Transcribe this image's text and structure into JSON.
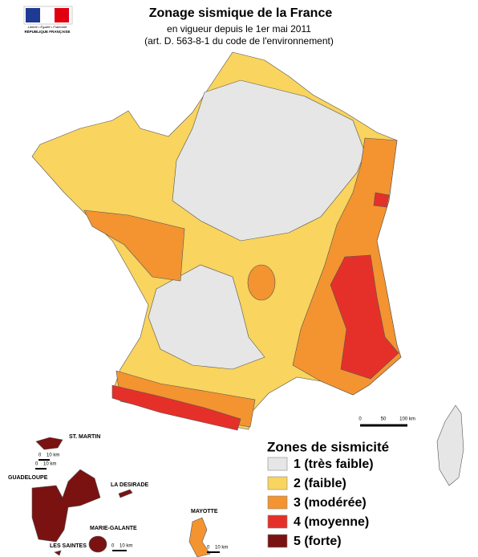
{
  "header": {
    "logo_motto": "Liberté • Égalité • Fraternité",
    "logo_name": "RÉPUBLIQUE FRANÇAISE",
    "title": "Zonage sismique de la France",
    "subtitle": [
      "en vigueur depuis le 1er mai 2011",
      "(art. D. 563-8-1 du code de l'environnement)"
    ]
  },
  "scale_bars": {
    "main": [
      "0",
      "50",
      "100 km"
    ],
    "saint_martin": [
      "0",
      "10 km"
    ],
    "guadeloupe": [
      "0",
      "10 km"
    ],
    "marie_galante": [
      "0",
      "10 km"
    ],
    "mayotte": [
      "0",
      "10 km"
    ]
  },
  "places": {
    "saint_martin": "ST. MARTIN",
    "guadeloupe": "GUADELOUPE",
    "la_desirade": "LA DESIRADE",
    "marie_galante": "MARIE-GALANTE",
    "les_saintes": "LES SAINTES",
    "mayotte": "MAYOTTE"
  },
  "legend": {
    "title": "Zones de sismicité",
    "items": [
      {
        "label": "1 (très faible)",
        "color": "#e6e6e6"
      },
      {
        "label": "2 (faible)",
        "color": "#f9d45e"
      },
      {
        "label": "3 (modérée)",
        "color": "#f39431"
      },
      {
        "label": "4 (moyenne)",
        "color": "#e5302a"
      },
      {
        "label": "5 (forte)",
        "color": "#7a1212"
      }
    ]
  }
}
